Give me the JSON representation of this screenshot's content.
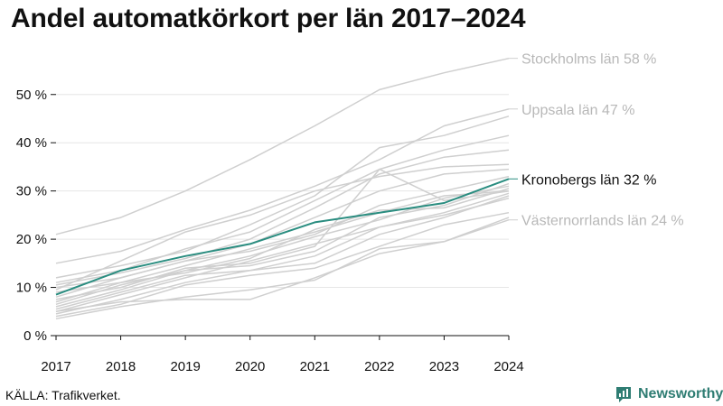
{
  "title": "Andel automatkörkort per län 2017–2024",
  "source": "KÄLLA: Trafikverket.",
  "brand": {
    "name": "Newsworthy",
    "icon": "newsworthy-logo-icon",
    "color": "#2f7d73"
  },
  "colors": {
    "highlight": "#2a8d80",
    "background_series": "#cfcfcf",
    "label_grey": "#b8b8b8",
    "axis": "#111111",
    "grid": "#e6e6e6"
  },
  "chart_data": {
    "type": "line",
    "title": "Andel automatkörkort per län 2017–2024",
    "x": [
      2017,
      2018,
      2019,
      2020,
      2021,
      2022,
      2023,
      2024
    ],
    "xlim": [
      2017,
      2024
    ],
    "ylim": [
      0,
      58
    ],
    "yticks": [
      0,
      10,
      20,
      30,
      40,
      50
    ],
    "ytick_labels": [
      "0 %",
      "10 %",
      "20 %",
      "30 %",
      "40 %",
      "50 %"
    ],
    "grid": "horizontal",
    "series": [
      {
        "name": "Stockholms län",
        "label": "Stockholms län 58 %",
        "highlight": false,
        "labeled": true,
        "values": [
          21,
          24.5,
          30,
          36.5,
          43.5,
          51,
          54.5,
          57.5
        ]
      },
      {
        "name": "Uppsala län",
        "label": "Uppsala län 47 %",
        "highlight": false,
        "labeled": true,
        "values": [
          15,
          17.5,
          22,
          26,
          31,
          36.5,
          43.5,
          47
        ]
      },
      {
        "name": "Kronobergs län",
        "label": "Kronobergs län 32 %",
        "highlight": true,
        "labeled": true,
        "values": [
          8.5,
          13.5,
          16.5,
          19,
          23.5,
          25.5,
          27.5,
          32.5
        ]
      },
      {
        "name": "Västernorrlands län",
        "label": "Västernorrlands län 24 %",
        "highlight": false,
        "labeled": true,
        "values": [
          5,
          7,
          7.5,
          7.5,
          12,
          17,
          19.5,
          24
        ]
      },
      {
        "values": [
          12,
          14.5,
          17.5,
          23,
          29,
          39,
          41.5,
          45.5
        ],
        "labeled": false
      },
      {
        "values": [
          11,
          13.5,
          18,
          21.5,
          28,
          34.5,
          38.5,
          41.5
        ],
        "labeled": false
      },
      {
        "values": [
          10.5,
          13,
          16,
          20,
          26.5,
          33.5,
          37,
          38.5
        ],
        "labeled": false
      },
      {
        "values": [
          9.5,
          15.5,
          21.5,
          25,
          30,
          33,
          35,
          35.5
        ],
        "labeled": false
      },
      {
        "values": [
          10,
          12,
          15.5,
          19,
          24.5,
          30,
          33.5,
          34.5
        ],
        "labeled": false
      },
      {
        "values": [
          7.5,
          10,
          14,
          15,
          18.5,
          34.5,
          28,
          30
        ],
        "labeled": false
      },
      {
        "values": [
          8,
          12,
          15.5,
          17.5,
          21,
          27,
          30,
          33
        ],
        "labeled": false
      },
      {
        "values": [
          6,
          9.5,
          13.5,
          14.5,
          17.5,
          24.5,
          27,
          31.5
        ],
        "labeled": false
      },
      {
        "values": [
          7,
          11,
          13,
          16,
          22,
          26,
          26.5,
          30.5
        ],
        "labeled": false
      },
      {
        "values": [
          5.5,
          9,
          12.5,
          13.5,
          16.5,
          22.5,
          25.5,
          29.5
        ],
        "labeled": false
      },
      {
        "values": [
          4.5,
          7.5,
          11,
          13.5,
          15,
          21,
          24.5,
          29
        ],
        "labeled": false
      },
      {
        "values": [
          4,
          6.5,
          10.5,
          12.5,
          14,
          18.5,
          23,
          25.5
        ],
        "labeled": false
      },
      {
        "values": [
          3.5,
          6,
          8,
          9.5,
          11.5,
          18,
          19.5,
          24.5
        ],
        "labeled": false
      },
      {
        "values": [
          9,
          11,
          14.5,
          18,
          21.5,
          25.5,
          29,
          30
        ],
        "labeled": false
      },
      {
        "values": [
          6.5,
          10.5,
          13.5,
          16.5,
          20.5,
          24,
          28.5,
          31
        ],
        "labeled": false
      },
      {
        "values": [
          5,
          8.5,
          12,
          15.5,
          19,
          22.5,
          25,
          28.5
        ],
        "labeled": false
      }
    ]
  }
}
